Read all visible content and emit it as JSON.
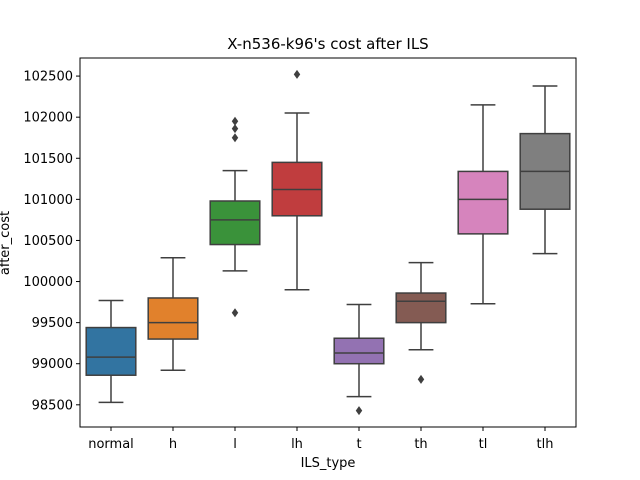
{
  "chart_data": {
    "type": "box",
    "title": "X-n536-k96's cost after ILS",
    "xlabel": "ILS_type",
    "ylabel": "after_cost",
    "ylim": [
      98230,
      102720
    ],
    "yticks": [
      98500,
      99000,
      99500,
      100000,
      100500,
      101000,
      101500,
      102000,
      102500
    ],
    "grid": false,
    "legend": "none",
    "categories": [
      "normal",
      "h",
      "l",
      "lh",
      "t",
      "th",
      "tl",
      "tlh"
    ],
    "series": [
      {
        "category": "normal",
        "color": "#3274a1",
        "whisker_low": 98530,
        "q1": 98860,
        "median": 99080,
        "q3": 99440,
        "whisker_high": 99770,
        "outliers": []
      },
      {
        "category": "h",
        "color": "#e1812c",
        "whisker_low": 98920,
        "q1": 99300,
        "median": 99500,
        "q3": 99800,
        "whisker_high": 100290,
        "outliers": []
      },
      {
        "category": "l",
        "color": "#3a923a",
        "whisker_low": 100130,
        "q1": 100450,
        "median": 100750,
        "q3": 100980,
        "whisker_high": 101350,
        "outliers": [
          99620,
          101750,
          101860,
          101950
        ]
      },
      {
        "category": "lh",
        "color": "#c03d3e",
        "whisker_low": 99900,
        "q1": 100800,
        "median": 101120,
        "q3": 101450,
        "whisker_high": 102050,
        "outliers": [
          102520
        ]
      },
      {
        "category": "t",
        "color": "#9372b2",
        "whisker_low": 98600,
        "q1": 99000,
        "median": 99130,
        "q3": 99310,
        "whisker_high": 99720,
        "outliers": [
          98430
        ]
      },
      {
        "category": "th",
        "color": "#845b53",
        "whisker_low": 99170,
        "q1": 99500,
        "median": 99760,
        "q3": 99860,
        "whisker_high": 100230,
        "outliers": [
          98810
        ]
      },
      {
        "category": "tl",
        "color": "#d684bd",
        "whisker_low": 99730,
        "q1": 100580,
        "median": 101000,
        "q3": 101340,
        "whisker_high": 102150,
        "outliers": []
      },
      {
        "category": "tlh",
        "color": "#7f7f7f",
        "whisker_low": 100340,
        "q1": 100880,
        "median": 101340,
        "q3": 101800,
        "whisker_high": 102380,
        "outliers": []
      }
    ]
  }
}
